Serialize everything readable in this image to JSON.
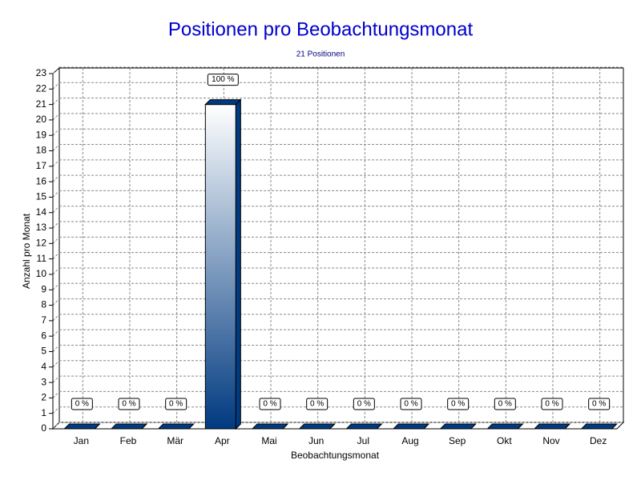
{
  "chart_data": {
    "type": "bar3d",
    "title": "Positionen pro Beobachtungsmonat",
    "subtitle": "21 Positionen",
    "x_label": "Beobachtungsmonat",
    "y_label": "Anzahl pro Monat",
    "categories": [
      "Jan",
      "Feb",
      "Mär",
      "Apr",
      "Mai",
      "Jun",
      "Jul",
      "Aug",
      "Sep",
      "Okt",
      "Nov",
      "Dez"
    ],
    "values": [
      0,
      0,
      0,
      21,
      0,
      0,
      0,
      0,
      0,
      0,
      0,
      0
    ],
    "value_labels": [
      "0 %",
      "0 %",
      "0 %",
      "100 %",
      "0 %",
      "0 %",
      "0 %",
      "0 %",
      "0 %",
      "0 %",
      "0 %",
      "0 %"
    ],
    "color": "#003a80",
    "ylim": [
      0,
      23
    ],
    "yticks": [
      0,
      1,
      2,
      3,
      4,
      5,
      6,
      7,
      8,
      9,
      10,
      11,
      12,
      13,
      14,
      15,
      16,
      17,
      18,
      19,
      20,
      21,
      22,
      23
    ],
    "grid": true
  }
}
